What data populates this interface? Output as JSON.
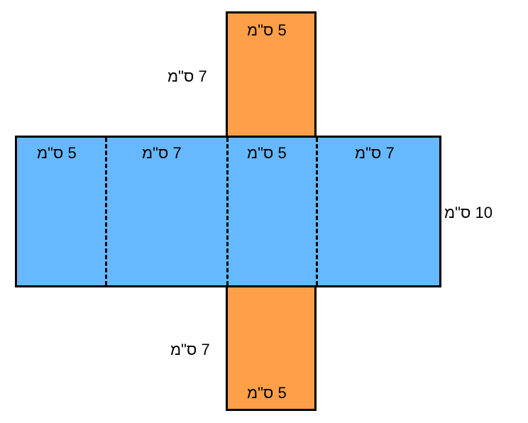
{
  "colors": {
    "side_faces": "#ff9f4a",
    "lateral_faces": "#66b8ff",
    "outline": "#000000"
  },
  "top_face": {
    "width_label": "5 ס\"מ",
    "height_label": "7 ס\"מ"
  },
  "bottom_face": {
    "width_label": "5 ס\"מ",
    "height_label": "7 ס\"מ"
  },
  "lateral_strip": {
    "panel_labels": [
      "5 ס\"מ",
      "7 ס\"מ",
      "5 ס\"מ",
      "7 ס\"מ"
    ],
    "height_label": "10 ס\"מ"
  }
}
